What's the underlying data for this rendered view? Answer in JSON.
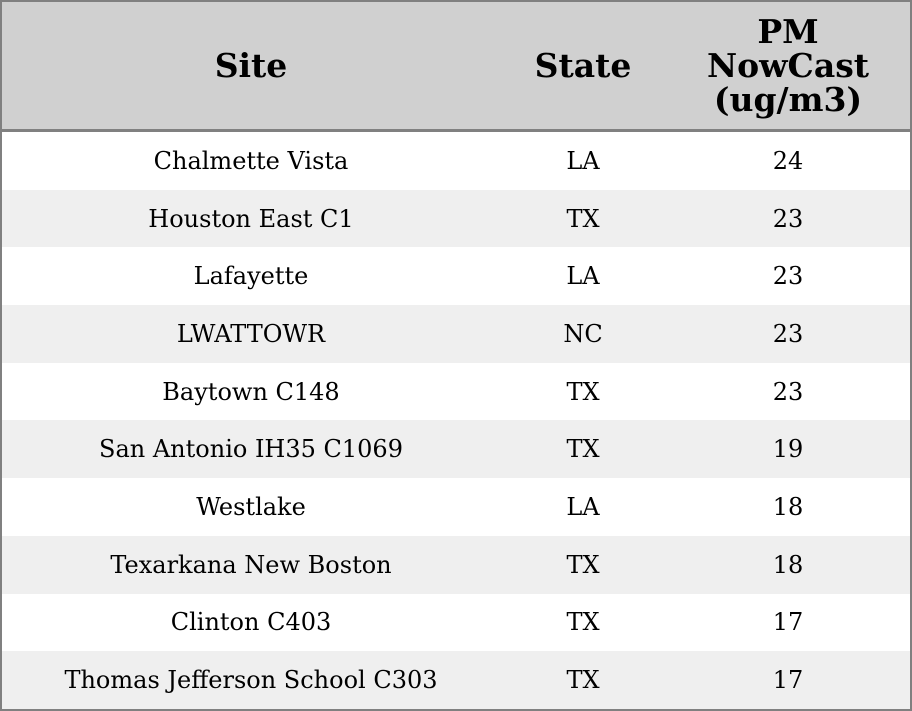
{
  "table": {
    "columns": [
      "Site",
      "State",
      "PM NowCast (ug/m3)"
    ],
    "rows": [
      [
        "Chalmette Vista",
        "LA",
        24
      ],
      [
        "Houston East C1",
        "TX",
        23
      ],
      [
        "Lafayette",
        "LA",
        23
      ],
      [
        "LWATTOWR",
        "NC",
        23
      ],
      [
        "Baytown C148",
        "TX",
        23
      ],
      [
        "San Antonio IH35 C1069",
        "TX",
        19
      ],
      [
        "Westlake",
        "LA",
        18
      ],
      [
        "Texarkana New Boston",
        "TX",
        18
      ],
      [
        "Clinton C403",
        "TX",
        17
      ],
      [
        "Thomas Jefferson School C303",
        "TX",
        17
      ]
    ]
  }
}
